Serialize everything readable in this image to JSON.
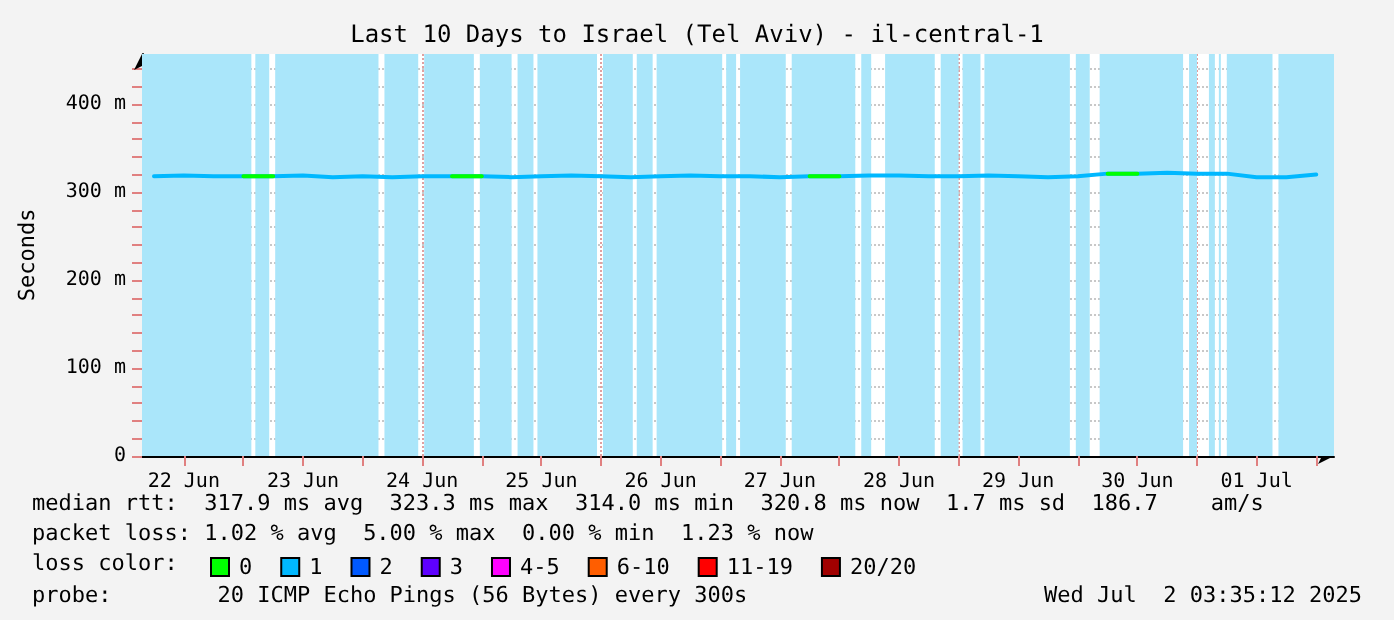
{
  "chart_data": {
    "type": "line",
    "title": "Last 10 Days to Israel (Tel Aviv) - il-central-1",
    "ylabel": "Seconds",
    "legend_title": "loss color:",
    "annotations": [
      "median rtt:  317.9 ms avg  323.3 ms max  314.0 ms min  320.8 ms now  1.7 ms sd  186.7    am/s",
      "packet loss: 1.02 % avg  5.00 % max  0.00 % min  1.23 % now",
      "probe:        20 ICMP Echo Pings (56 Bytes) every 300s",
      "Wed Jul  2 03:35:12 2025"
    ],
    "x": [
      "2025-06-22T06:00",
      "2025-06-22T12:00",
      "2025-06-22T18:00",
      "2025-06-23T00:00",
      "2025-06-23T06:00",
      "2025-06-23T12:00",
      "2025-06-23T18:00",
      "2025-06-24T00:00",
      "2025-06-24T06:00",
      "2025-06-24T12:00",
      "2025-06-24T18:00",
      "2025-06-25T00:00",
      "2025-06-25T06:00",
      "2025-06-25T12:00",
      "2025-06-25T18:00",
      "2025-06-26T00:00",
      "2025-06-26T06:00",
      "2025-06-26T12:00",
      "2025-06-26T18:00",
      "2025-06-27T00:00",
      "2025-06-27T06:00",
      "2025-06-27T12:00",
      "2025-06-27T18:00",
      "2025-06-28T00:00",
      "2025-06-28T06:00",
      "2025-06-28T12:00",
      "2025-06-28T18:00",
      "2025-06-29T00:00",
      "2025-06-29T06:00",
      "2025-06-29T12:00",
      "2025-06-29T18:00",
      "2025-06-30T00:00",
      "2025-06-30T06:00",
      "2025-06-30T12:00",
      "2025-06-30T18:00",
      "2025-07-01T00:00",
      "2025-07-01T06:00",
      "2025-07-01T12:00",
      "2025-07-01T18:00",
      "2025-07-02T00:00"
    ],
    "series": [
      {
        "name": "0",
        "color": "#00ff00",
        "values": [
          null,
          null,
          null,
          318,
          318,
          null,
          null,
          null,
          null,
          null,
          318,
          318,
          null,
          null,
          null,
          null,
          null,
          null,
          null,
          null,
          null,
          null,
          318,
          318,
          null,
          null,
          null,
          null,
          null,
          null,
          null,
          null,
          321,
          321,
          null,
          null,
          null,
          null,
          null,
          null
        ]
      },
      {
        "name": "1",
        "color": "#00b8ff",
        "values": [
          318,
          319,
          318,
          318,
          318,
          319,
          317,
          318,
          317,
          318,
          318,
          318,
          317,
          318,
          319,
          318,
          317,
          318,
          319,
          318,
          318,
          317,
          318,
          318,
          319,
          319,
          318,
          318,
          319,
          318,
          317,
          318,
          321,
          321,
          322,
          321,
          321,
          317,
          317,
          320
        ]
      },
      {
        "name": "2",
        "color": "#0059ff",
        "values": [
          null,
          null,
          null,
          null,
          null,
          null,
          null,
          null,
          null,
          null,
          null,
          null,
          null,
          null,
          null,
          null,
          null,
          null,
          null,
          null,
          null,
          null,
          null,
          null,
          null,
          null,
          null,
          null,
          null,
          null,
          null,
          null,
          null,
          null,
          null,
          null,
          null,
          null,
          null,
          null
        ]
      },
      {
        "name": "3",
        "color": "#5e00ff",
        "values": [
          null,
          null,
          null,
          null,
          null,
          null,
          null,
          null,
          null,
          null,
          null,
          null,
          null,
          null,
          null,
          null,
          null,
          null,
          null,
          null,
          null,
          null,
          null,
          null,
          null,
          null,
          null,
          null,
          null,
          null,
          null,
          null,
          null,
          null,
          null,
          null,
          null,
          null,
          null,
          null
        ]
      },
      {
        "name": "4-5",
        "color": "#ff00ff",
        "values": [
          null,
          null,
          null,
          null,
          null,
          null,
          null,
          null,
          null,
          null,
          null,
          null,
          null,
          null,
          null,
          null,
          null,
          null,
          null,
          null,
          null,
          null,
          null,
          null,
          null,
          null,
          null,
          null,
          null,
          null,
          null,
          null,
          null,
          null,
          null,
          null,
          null,
          null,
          null,
          null
        ]
      },
      {
        "name": "6-10",
        "color": "#ff5e00",
        "values": [
          null,
          null,
          null,
          null,
          null,
          null,
          null,
          null,
          null,
          null,
          null,
          null,
          null,
          null,
          null,
          null,
          null,
          null,
          null,
          null,
          null,
          null,
          null,
          null,
          null,
          null,
          null,
          null,
          null,
          null,
          null,
          null,
          null,
          null,
          null,
          null,
          null,
          null,
          null,
          null
        ]
      },
      {
        "name": "11-19",
        "color": "#ff0000",
        "values": [
          null,
          null,
          null,
          null,
          null,
          null,
          null,
          null,
          null,
          null,
          null,
          null,
          null,
          null,
          null,
          null,
          null,
          null,
          null,
          null,
          null,
          null,
          null,
          null,
          null,
          null,
          null,
          null,
          null,
          null,
          null,
          null,
          null,
          null,
          null,
          null,
          null,
          null,
          null,
          null
        ]
      },
      {
        "name": "20/20",
        "color": "#a10000",
        "values": [
          null,
          null,
          null,
          null,
          null,
          null,
          null,
          null,
          null,
          null,
          null,
          null,
          null,
          null,
          null,
          null,
          null,
          null,
          null,
          null,
          null,
          null,
          null,
          null,
          null,
          null,
          null,
          null,
          null,
          null,
          null,
          null,
          null,
          null,
          null,
          null,
          null,
          null,
          null,
          null
        ]
      }
    ],
    "xlim": [
      "2025-06-22T03:35",
      "2025-07-02T03:35"
    ],
    "xticks": [
      {
        "value": "2025-06-22T12:00",
        "label": "22 Jun"
      },
      {
        "value": "2025-06-23T00:00",
        "label": null
      },
      {
        "value": "2025-06-23T12:00",
        "label": "23 Jun"
      },
      {
        "value": "2025-06-24T00:00",
        "label": null
      },
      {
        "value": "2025-06-24T12:00",
        "label": "24 Jun"
      },
      {
        "value": "2025-06-25T00:00",
        "label": null
      },
      {
        "value": "2025-06-25T12:00",
        "label": "25 Jun"
      },
      {
        "value": "2025-06-26T00:00",
        "label": null
      },
      {
        "value": "2025-06-26T12:00",
        "label": "26 Jun"
      },
      {
        "value": "2025-06-27T00:00",
        "label": null
      },
      {
        "value": "2025-06-27T12:00",
        "label": "27 Jun"
      },
      {
        "value": "2025-06-28T00:00",
        "label": null
      },
      {
        "value": "2025-06-28T12:00",
        "label": "28 Jun"
      },
      {
        "value": "2025-06-29T00:00",
        "label": null
      },
      {
        "value": "2025-06-29T12:00",
        "label": "29 Jun"
      },
      {
        "value": "2025-06-30T00:00",
        "label": null
      },
      {
        "value": "2025-06-30T12:00",
        "label": "30 Jun"
      },
      {
        "value": "2025-07-01T00:00",
        "label": null
      },
      {
        "value": "2025-07-01T12:00",
        "label": "01 Jul"
      },
      {
        "value": "2025-07-02T00:00",
        "label": null
      }
    ],
    "ylim": [
      0,
      457
    ],
    "yticks": [
      0,
      {
        "value": 20,
        "label": null
      },
      {
        "value": 40,
        "label": null
      },
      {
        "value": 60,
        "label": null
      },
      {
        "value": 80,
        "label": null
      },
      {
        "value": 100,
        "label": "100 m"
      },
      {
        "value": 120,
        "label": null
      },
      {
        "value": 140,
        "label": null
      },
      {
        "value": 160,
        "label": null
      },
      {
        "value": 180,
        "label": null
      },
      {
        "value": 200,
        "label": "200 m"
      },
      {
        "value": 220,
        "label": null
      },
      {
        "value": 240,
        "label": null
      },
      {
        "value": 260,
        "label": null
      },
      {
        "value": 280,
        "label": null
      },
      {
        "value": 300,
        "label": "300 m"
      },
      {
        "value": 320,
        "label": null
      },
      {
        "value": 340,
        "label": null
      },
      {
        "value": 360,
        "label": null
      },
      {
        "value": 380,
        "label": null
      },
      {
        "value": 400,
        "label": "400 m"
      },
      {
        "value": 420,
        "label": null
      },
      {
        "value": 440,
        "label": null
      }
    ],
    "bands": [
      {
        "axis": "x",
        "from": "2025-06-22T03:35",
        "to": "2025-06-23T01:36",
        "color": "#aae6fa"
      },
      {
        "axis": "x",
        "from": "2025-06-23T02:24",
        "to": "2025-06-23T05:12",
        "color": "#aae6fa"
      },
      {
        "axis": "x",
        "from": "2025-06-23T06:24",
        "to": "2025-06-24T03:12",
        "color": "#aae6fa"
      },
      {
        "axis": "x",
        "from": "2025-06-24T04:24",
        "to": "2025-06-24T11:12",
        "color": "#aae6fa"
      },
      {
        "axis": "x",
        "from": "2025-06-24T12:24",
        "to": "2025-06-24T22:24",
        "color": "#aae6fa"
      },
      {
        "axis": "x",
        "from": "2025-06-24T23:36",
        "to": "2025-06-25T06:00",
        "color": "#aae6fa"
      },
      {
        "axis": "x",
        "from": "2025-06-25T07:12",
        "to": "2025-06-25T10:24",
        "color": "#aae6fa"
      },
      {
        "axis": "x",
        "from": "2025-06-25T11:12",
        "to": "2025-06-25T23:12",
        "color": "#aae6fa"
      },
      {
        "axis": "x",
        "from": "2025-06-26T00:24",
        "to": "2025-06-26T06:24",
        "color": "#aae6fa"
      },
      {
        "axis": "x",
        "from": "2025-06-26T07:12",
        "to": "2025-06-26T10:24",
        "color": "#aae6fa"
      },
      {
        "axis": "x",
        "from": "2025-06-26T11:12",
        "to": "2025-06-27T00:24",
        "color": "#aae6fa"
      },
      {
        "axis": "x",
        "from": "2025-06-27T01:12",
        "to": "2025-06-27T03:12",
        "color": "#aae6fa"
      },
      {
        "axis": "x",
        "from": "2025-06-27T04:00",
        "to": "2025-06-27T13:12",
        "color": "#aae6fa"
      },
      {
        "axis": "x",
        "from": "2025-06-27T14:24",
        "to": "2025-06-28T03:12",
        "color": "#aae6fa"
      },
      {
        "axis": "x",
        "from": "2025-06-28T04:24",
        "to": "2025-06-28T06:24",
        "color": "#aae6fa"
      },
      {
        "axis": "x",
        "from": "2025-06-28T09:12",
        "to": "2025-06-28T19:12",
        "color": "#aae6fa"
      },
      {
        "axis": "x",
        "from": "2025-06-28T20:24",
        "to": "2025-06-29T00:00",
        "color": "#aae6fa"
      },
      {
        "axis": "x",
        "from": "2025-06-29T00:48",
        "to": "2025-06-29T04:24",
        "color": "#aae6fa"
      },
      {
        "axis": "x",
        "from": "2025-06-29T05:12",
        "to": "2025-06-29T22:24",
        "color": "#aae6fa"
      },
      {
        "axis": "x",
        "from": "2025-06-29T23:36",
        "to": "2025-06-30T02:24",
        "color": "#aae6fa"
      },
      {
        "axis": "x",
        "from": "2025-06-30T04:24",
        "to": "2025-06-30T21:12",
        "color": "#aae6fa"
      },
      {
        "axis": "x",
        "from": "2025-06-30T22:24",
        "to": "2025-07-01T00:00",
        "color": "#aae6fa"
      },
      {
        "axis": "x",
        "from": "2025-07-01T02:24",
        "to": "2025-07-01T03:36",
        "color": "#aae6fa"
      },
      {
        "axis": "x",
        "from": "2025-07-01T04:24",
        "to": "2025-07-01T04:48",
        "color": "#aae6fa"
      },
      {
        "axis": "x",
        "from": "2025-07-01T06:00",
        "to": "2025-07-01T15:12",
        "color": "#aae6fa"
      },
      {
        "axis": "x",
        "from": "2025-07-01T16:24",
        "to": "2025-07-02T03:35",
        "color": "#aae6fa"
      }
    ],
    "grid": true,
    "legend": "bottom left",
    "marker": "none",
    "line_style": "solid"
  }
}
